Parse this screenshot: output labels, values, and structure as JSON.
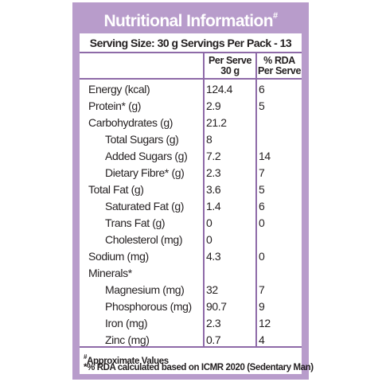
{
  "title": "Nutritional Information",
  "title_mark": "#",
  "serving": "Serving Size: 30 g   Servings Per Pack - 13",
  "headers": {
    "per_serve_line1": "Per Serve",
    "per_serve_line2": "30 g",
    "rda_line1": "% RDA",
    "rda_line2": "Per Serve"
  },
  "rows": [
    {
      "name": "Energy (kcal)",
      "value": "124.4",
      "rda": "6"
    },
    {
      "name": "Protein* (g)",
      "value": "2.9",
      "rda": "5"
    },
    {
      "name": "Carbohydrates (g)",
      "value": "21.2",
      "rda": ""
    },
    {
      "name": "Total Sugars (g)",
      "value": "8",
      "rda": ""
    },
    {
      "name": "Added Sugars (g)",
      "value": "7.2",
      "rda": "14"
    },
    {
      "name": "Dietary Fibre* (g)",
      "value": "2.3",
      "rda": "7"
    },
    {
      "name": "Total Fat (g)",
      "value": "3.6",
      "rda": "5"
    },
    {
      "name": "Saturated Fat (g)",
      "value": "1.4",
      "rda": "6"
    },
    {
      "name": "Trans Fat (g)",
      "value": "0",
      "rda": "0"
    },
    {
      "name": "Cholesterol (mg)",
      "value": "0",
      "rda": ""
    },
    {
      "name": "Sodium (mg)",
      "value": "4.3",
      "rda": "0"
    },
    {
      "name": "Minerals*",
      "value": "",
      "rda": ""
    },
    {
      "name": "Magnesium (mg)",
      "value": "32",
      "rda": "7"
    },
    {
      "name": "Phosphorous (mg)",
      "value": "90.7",
      "rda": "9"
    },
    {
      "name": "Iron (mg)",
      "value": "2.3",
      "rda": "12"
    },
    {
      "name": "Zinc (mg)",
      "value": "0.7",
      "rda": "4"
    }
  ],
  "footnotes": {
    "approx_mark": "#",
    "approx": "Approximate Values",
    "rda_note": "*% RDA calculated based on ICMR 2020 (Sedentary Man)"
  },
  "colors": {
    "panel": "#b89ccb",
    "rule": "#8e6aa8",
    "text": "#231f20"
  }
}
